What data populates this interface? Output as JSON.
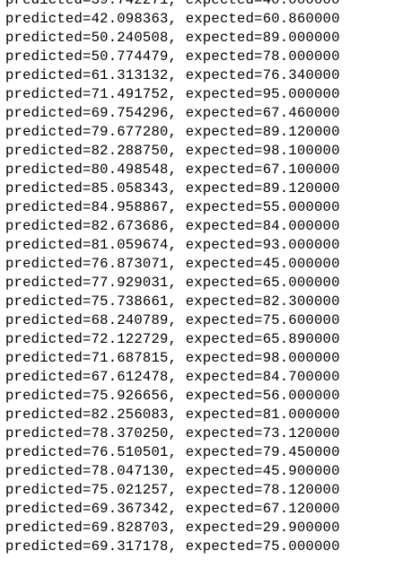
{
  "console": {
    "lines": [
      "predicted=39.742271, expected=40.000000",
      "predicted=42.098363, expected=60.860000",
      "predicted=50.240508, expected=89.000000",
      "predicted=50.774479, expected=78.000000",
      "predicted=61.313132, expected=76.340000",
      "predicted=71.491752, expected=95.000000",
      "predicted=69.754296, expected=67.460000",
      "predicted=79.677280, expected=89.120000",
      "predicted=82.288750, expected=98.100000",
      "predicted=80.498548, expected=67.100000",
      "predicted=85.058343, expected=89.120000",
      "predicted=84.958867, expected=55.000000",
      "predicted=82.673686, expected=84.000000",
      "predicted=81.059674, expected=93.000000",
      "predicted=76.873071, expected=45.000000",
      "predicted=77.929031, expected=65.000000",
      "predicted=75.738661, expected=82.300000",
      "predicted=68.240789, expected=75.600000",
      "predicted=72.122729, expected=65.890000",
      "predicted=71.687815, expected=98.000000",
      "predicted=67.612478, expected=84.700000",
      "predicted=75.926656, expected=56.000000",
      "predicted=82.256083, expected=81.000000",
      "predicted=78.370250, expected=73.120000",
      "predicted=76.510501, expected=79.450000",
      "predicted=78.047130, expected=45.900000",
      "predicted=75.021257, expected=78.120000",
      "predicted=69.367342, expected=67.120000",
      "predicted=69.828703, expected=29.900000",
      "predicted=69.317178, expected=75.000000"
    ]
  }
}
